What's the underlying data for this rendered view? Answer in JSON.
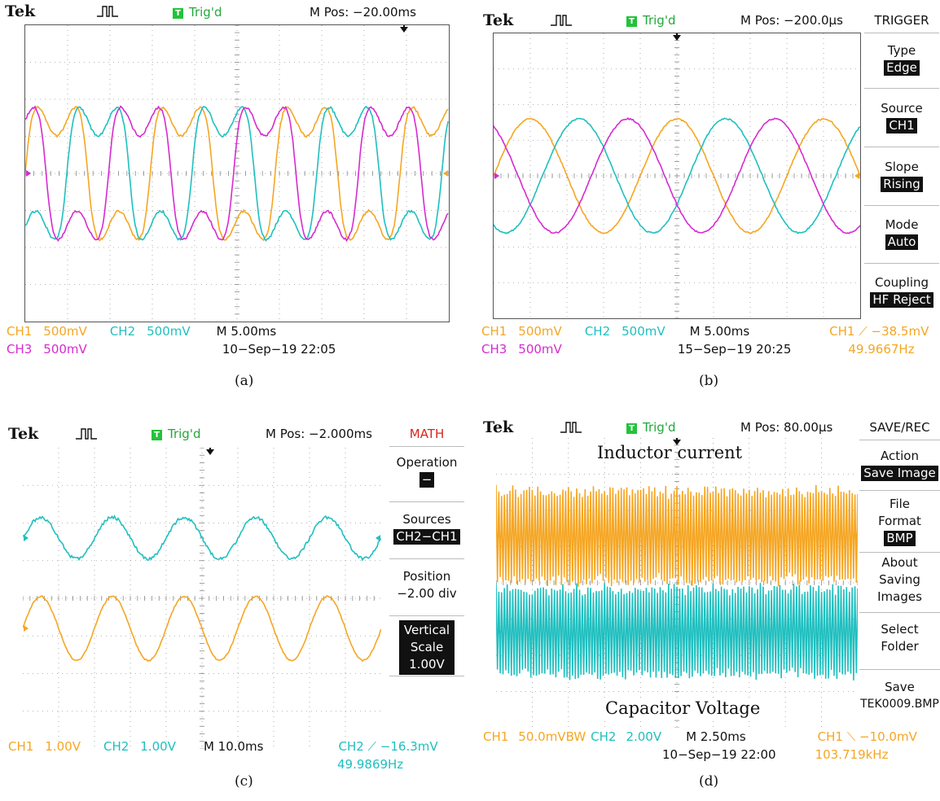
{
  "panels": {
    "a": {
      "caption": "(a)",
      "brand": "Tek",
      "trig": "Trig'd",
      "trig_badge": "T",
      "mpos": "M Pos: −20.00ms",
      "ch1": "CH1",
      "ch1_scale": "500mV",
      "ch2": "CH2",
      "ch2_scale": "500mV",
      "ch3": "CH3",
      "ch3_scale": "500mV",
      "timebase": "M 5.00ms",
      "datetime": "10−Sep−19 22:05"
    },
    "b": {
      "caption": "(b)",
      "brand": "Tek",
      "trig": "Trig'd",
      "trig_badge": "T",
      "mpos": "M Pos: −200.0µs",
      "ch1": "CH1",
      "ch1_scale": "500mV",
      "ch2": "CH2",
      "ch2_scale": "500mV",
      "ch3": "CH3",
      "ch3_scale": "500mV",
      "timebase": "M 5.00ms",
      "datetime": "15−Sep−19 20:25",
      "trigger_info": "CH1 ⟋ −38.5mV",
      "frequency": "49.9667Hz",
      "menu": {
        "title": "TRIGGER",
        "items": [
          {
            "label": "Type",
            "value": "Edge"
          },
          {
            "label": "Source",
            "value": "CH1"
          },
          {
            "label": "Slope",
            "value": "Rising"
          },
          {
            "label": "Mode",
            "value": "Auto"
          },
          {
            "label": "Coupling",
            "value": "HF Reject"
          }
        ]
      }
    },
    "c": {
      "caption": "(c)",
      "brand": "Tek",
      "trig": "Trig'd",
      "trig_badge": "T",
      "mpos": "M Pos: −2.000ms",
      "ch1": "CH1",
      "ch1_scale": "1.00V",
      "ch2": "CH2",
      "ch2_scale": "1.00V",
      "timebase": "M 10.0ms",
      "trigger_info": "CH2 ⟋ −16.3mV",
      "frequency": "49.9869Hz",
      "menu": {
        "title": "MATH",
        "operation_label": "Operation",
        "operation_value": "−",
        "sources_label": "Sources",
        "sources_value": "CH2−CH1",
        "position_label": "Position",
        "position_value": "−2.00 div",
        "vscale_label1": "Vertical",
        "vscale_label2": "Scale",
        "vscale_value": "1.00V"
      }
    },
    "d": {
      "caption": "(d)",
      "brand": "Tek",
      "trig": "Trig'd",
      "trig_badge": "T",
      "mpos": "M Pos: 80.00µs",
      "ch1": "CH1",
      "ch1_scale": "50.0mVBW",
      "ch2": "CH2",
      "ch2_scale": "2.00V",
      "timebase": "M 2.50ms",
      "datetime": "10−Sep−19 22:00",
      "trigger_info": "CH1 ⟍ −10.0mV",
      "frequency": "103.719kHz",
      "label_top": "Inductor current",
      "label_bottom": "Capacitor Voltage",
      "menu": {
        "title": "SAVE/REC",
        "action_label": "Action",
        "action_value": "Save Image",
        "file_label1": "File",
        "file_label2": "Format",
        "file_value": "BMP",
        "about_1": "About",
        "about_2": "Saving",
        "about_3": "Images",
        "select_1": "Select",
        "select_2": "Folder",
        "save_label": "Save",
        "save_value": "TEK0009.BMP"
      }
    }
  },
  "chart_data": [
    {
      "type": "line",
      "panel": "a",
      "title": "",
      "series": [
        {
          "name": "CH1",
          "color": "#f5a623",
          "shape": "distorted-square",
          "amplitude_div": 1.7,
          "period_div": 2.95,
          "phase_deg": 0
        },
        {
          "name": "CH2",
          "color": "#20bfbf",
          "shape": "distorted-square",
          "amplitude_div": 1.7,
          "period_div": 2.95,
          "phase_deg": 120
        },
        {
          "name": "CH3",
          "color": "#d62bd0",
          "shape": "distorted-square",
          "amplitude_div": 1.7,
          "period_div": 2.95,
          "phase_deg": 240
        }
      ]
    },
    {
      "type": "line",
      "panel": "b",
      "title": "",
      "series": [
        {
          "name": "CH1",
          "color": "#f5a623",
          "shape": "sine",
          "amplitude_div": 1.6,
          "period_div": 4.0,
          "phase_deg": 0
        },
        {
          "name": "CH2",
          "color": "#20bfbf",
          "shape": "sine",
          "amplitude_div": 1.6,
          "period_div": 4.0,
          "phase_deg": 120
        },
        {
          "name": "CH3",
          "color": "#d62bd0",
          "shape": "sine",
          "amplitude_div": 1.6,
          "period_div": 4.0,
          "phase_deg": 240
        }
      ]
    },
    {
      "type": "line",
      "panel": "c",
      "title": "",
      "series": [
        {
          "name": "CH2",
          "color": "#20bfbf",
          "shape": "noisy-sine",
          "amplitude_div": 0.55,
          "period_div": 2.0,
          "offset_div": 1.6
        },
        {
          "name": "CH1",
          "color": "#f5a623",
          "shape": "sine",
          "amplitude_div": 0.85,
          "period_div": 2.0,
          "offset_div": -0.8
        }
      ]
    },
    {
      "type": "line",
      "panel": "d",
      "title": "",
      "series": [
        {
          "name": "CH1",
          "color": "#f5a623",
          "shape": "dense-oscillation",
          "amplitude_div": 1.35,
          "offset_div": 1.3
        },
        {
          "name": "CH2",
          "color": "#20bfbf",
          "shape": "dense-oscillation",
          "amplitude_div": 1.3,
          "offset_div": -1.35
        }
      ]
    }
  ]
}
